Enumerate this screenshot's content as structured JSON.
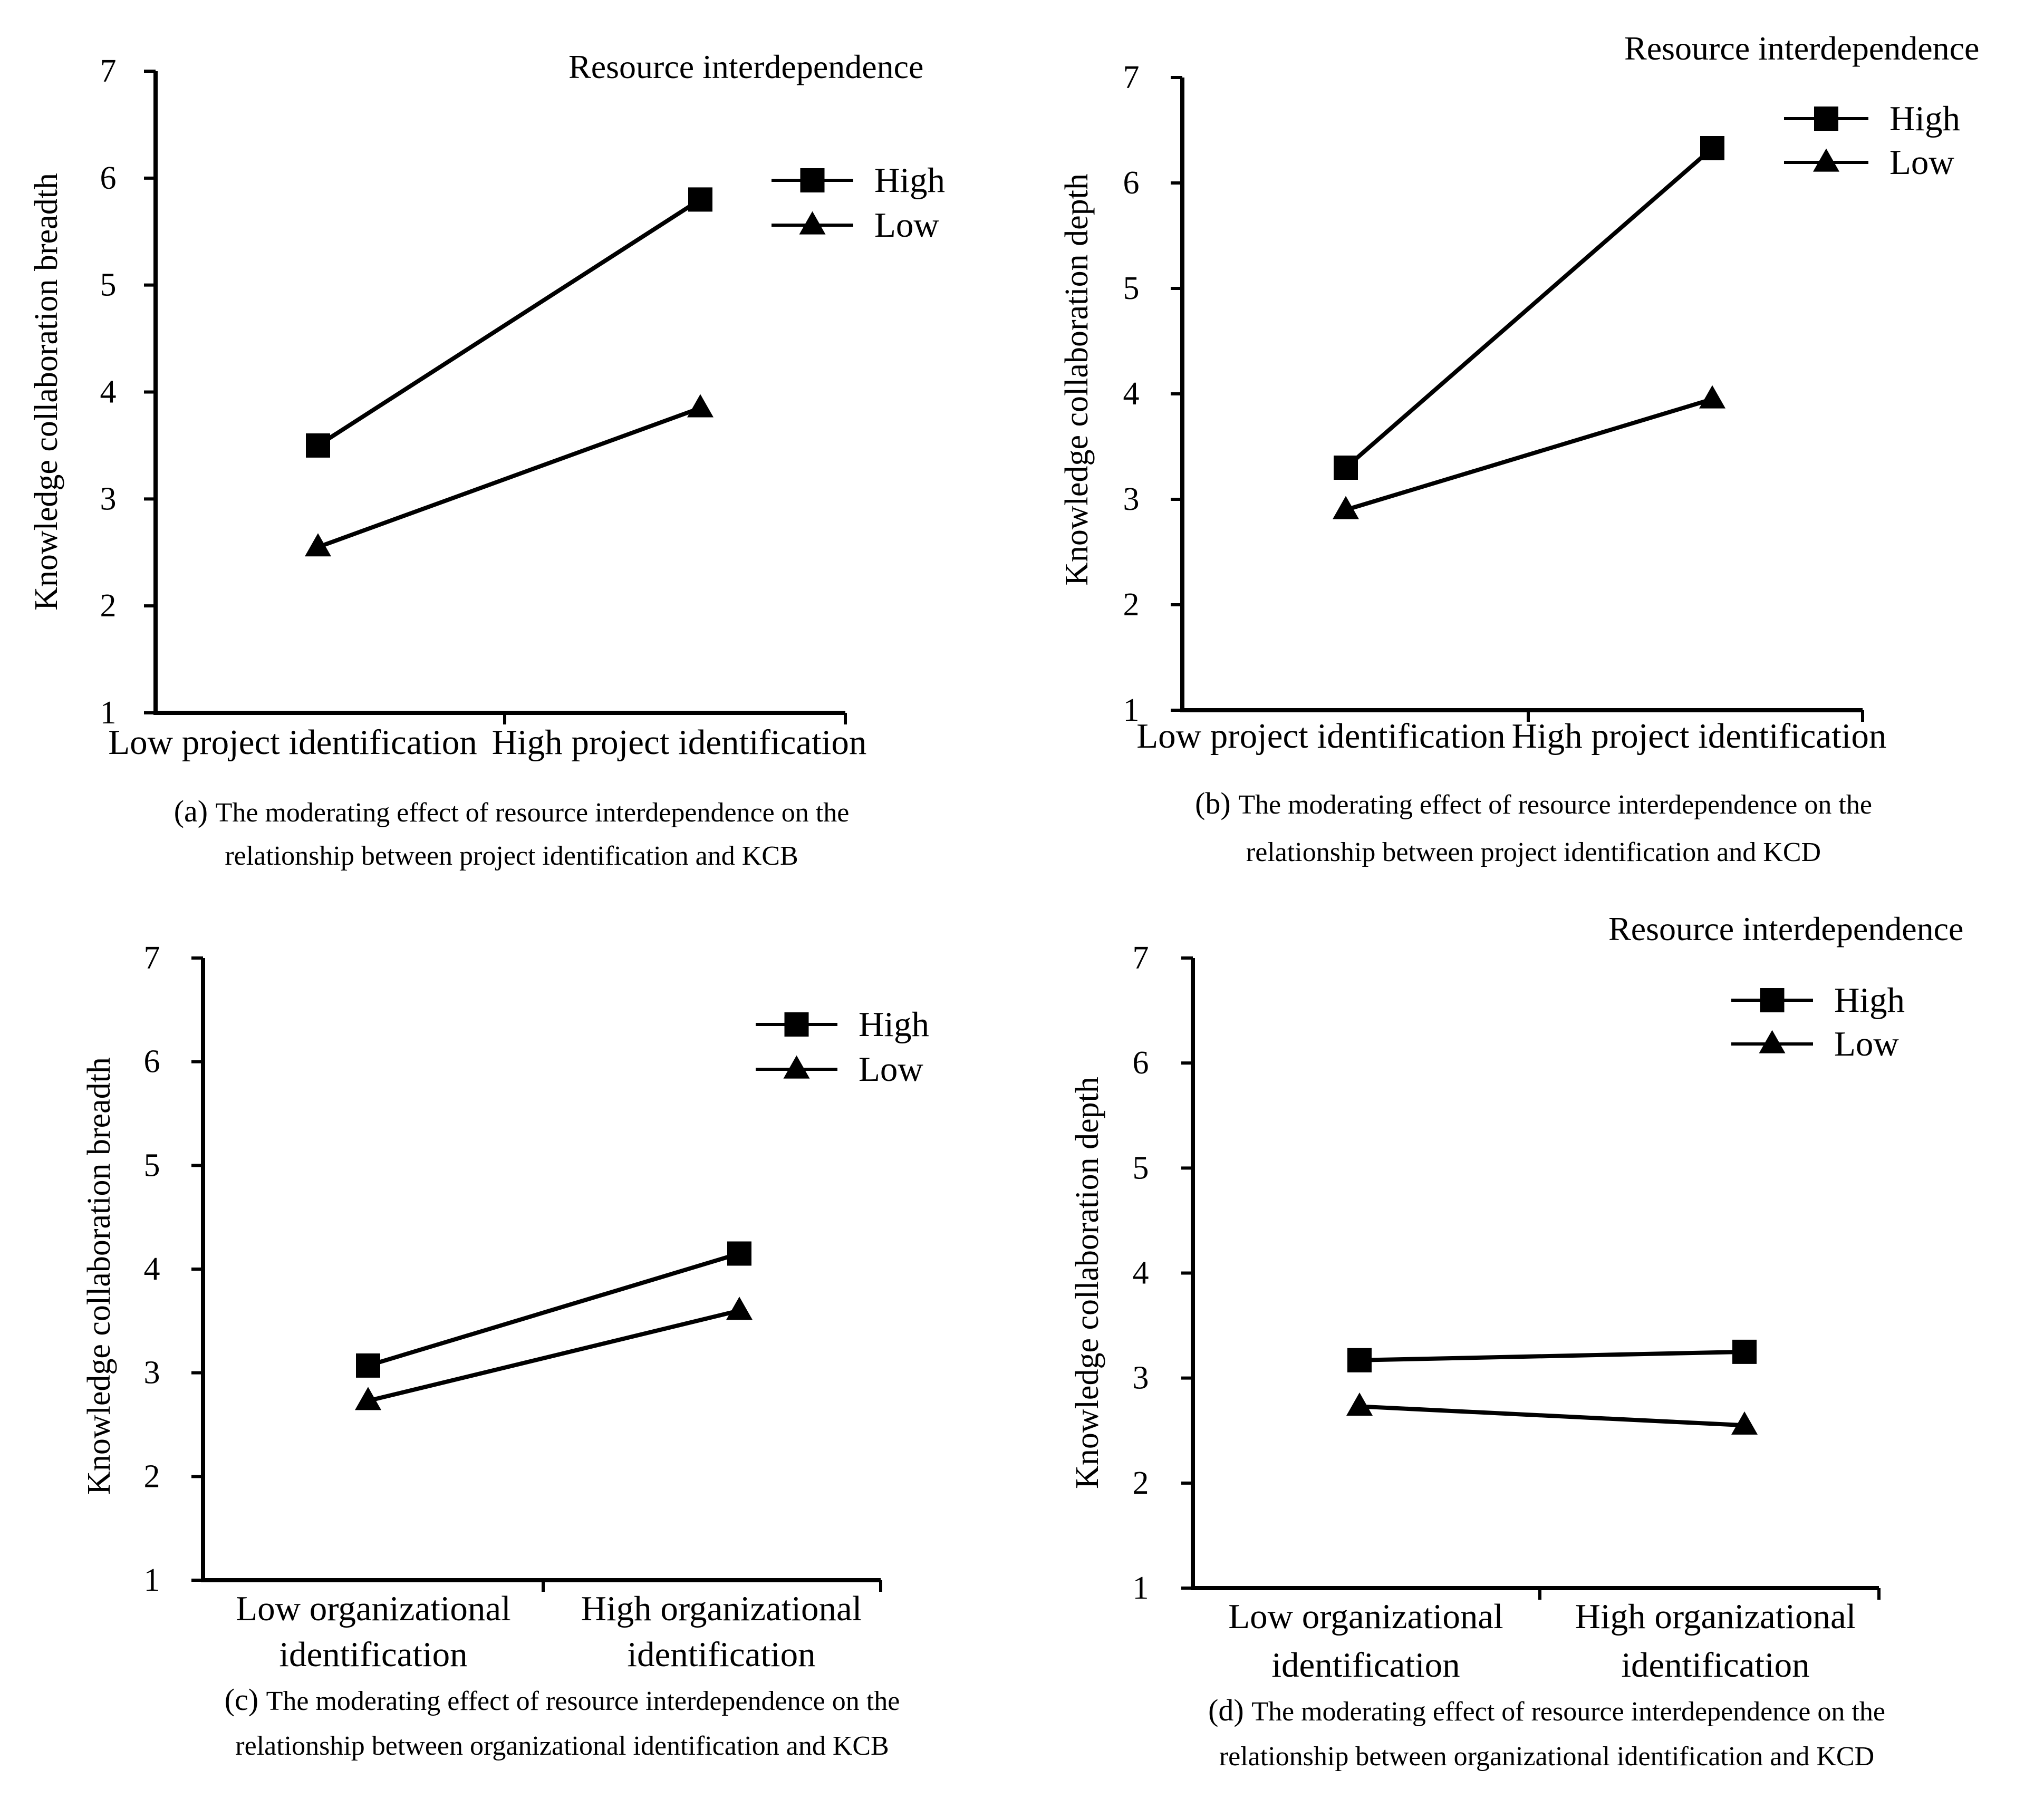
{
  "chart_data": [
    {
      "id": "a",
      "type": "line",
      "legend_title": "Resource interdependence",
      "ylabel": "Knowledge collaboration breadth",
      "categories": [
        "Low project identification",
        "High project identification"
      ],
      "ylim": [
        1,
        7
      ],
      "yticks": [
        "1",
        "2",
        "3",
        "4",
        "5",
        "6",
        "7"
      ],
      "series": [
        {
          "name": "High",
          "marker": "square",
          "values": [
            3.5,
            5.8
          ]
        },
        {
          "name": "Low",
          "marker": "triangle",
          "values": [
            2.55,
            3.85
          ]
        }
      ],
      "caption_prefix": "(a)",
      "caption_line1": "The moderating effect of resource interdependence on the",
      "caption_line2": "relationship between project identification and KCB"
    },
    {
      "id": "b",
      "type": "line",
      "legend_title": "Resource interdependence",
      "ylabel": "Knowledge collaboration depth",
      "categories": [
        "Low project identification",
        "High project identification"
      ],
      "ylim": [
        1,
        7
      ],
      "yticks": [
        "1",
        "2",
        "3",
        "4",
        "5",
        "6",
        "7"
      ],
      "series": [
        {
          "name": "High",
          "marker": "square",
          "values": [
            3.3,
            6.33
          ]
        },
        {
          "name": "Low",
          "marker": "triangle",
          "values": [
            2.9,
            3.95
          ]
        }
      ],
      "caption_prefix": "(b)",
      "caption_line1": "The moderating effect of resource interdependence on the",
      "caption_line2": "relationship between project identification and KCD"
    },
    {
      "id": "c",
      "type": "line",
      "legend_title": "",
      "ylabel": "Knowledge collaboration breadth",
      "categories": [
        "Low organizational identification",
        "High organizational identification"
      ],
      "category_lines": [
        [
          "Low organizational",
          "identification"
        ],
        [
          "High organizational",
          "identification"
        ]
      ],
      "ylim": [
        1,
        7
      ],
      "yticks": [
        "1",
        "2",
        "3",
        "4",
        "5",
        "6",
        "7"
      ],
      "series": [
        {
          "name": "High",
          "marker": "square",
          "values": [
            3.07,
            4.15
          ]
        },
        {
          "name": "Low",
          "marker": "triangle",
          "values": [
            2.73,
            3.6
          ]
        }
      ],
      "caption_prefix": "(c)",
      "caption_line1": "The moderating effect of resource interdependence on the",
      "caption_line2": "relationship between organizational identification and KCB"
    },
    {
      "id": "d",
      "type": "line",
      "legend_title": "Resource interdependence",
      "ylabel": "Knowledge collaboration depth",
      "categories": [
        "Low organizational identification",
        "High organizational identification"
      ],
      "category_lines": [
        [
          "Low organizational",
          "identification"
        ],
        [
          "High organizational",
          "identification"
        ]
      ],
      "ylim": [
        1,
        7
      ],
      "yticks": [
        "1",
        "2",
        "3",
        "4",
        "5",
        "6",
        "7"
      ],
      "series": [
        {
          "name": "High",
          "marker": "square",
          "values": [
            3.17,
            3.25
          ]
        },
        {
          "name": "Low",
          "marker": "triangle",
          "values": [
            2.73,
            2.55
          ]
        }
      ],
      "caption_prefix": "(d)",
      "caption_line1": "The moderating effect of resource interdependence on the",
      "caption_line2": "relationship between organizational identification and KCD"
    }
  ]
}
